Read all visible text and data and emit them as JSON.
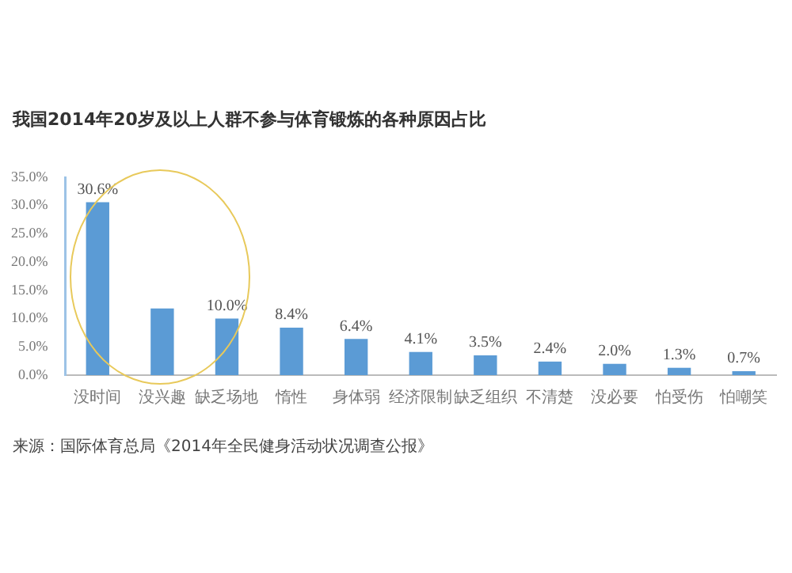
{
  "chart_data": {
    "type": "bar",
    "title": "我国2014年20岁及以上人群不参与体育锻炼的各种原因占比",
    "categories": [
      "没时间",
      "没兴趣",
      "缺乏场地",
      "惰性",
      "身体弱",
      "经济限制",
      "缺乏组织",
      "不清楚",
      "没必要",
      "怕受伤",
      "怕嘲笑"
    ],
    "values": [
      30.6,
      11.8,
      10.0,
      8.4,
      6.4,
      4.1,
      3.5,
      2.4,
      2.0,
      1.3,
      0.7
    ],
    "value_labels": [
      "30.6%",
      null,
      "10.0%",
      "8.4%",
      "6.4%",
      "4.1%",
      "3.5%",
      "2.4%",
      "2.0%",
      "1.3%",
      "0.7%"
    ],
    "color": "#5b9bd5",
    "ylim": [
      0,
      35
    ],
    "yticks": [
      {
        "value": 0,
        "label": "0.0%"
      },
      {
        "value": 5,
        "label": "5.0%"
      },
      {
        "value": 10,
        "label": "10.0%"
      },
      {
        "value": 15,
        "label": "15.0%"
      },
      {
        "value": 20,
        "label": "20.0%"
      },
      {
        "value": 25,
        "label": "25.0%"
      },
      {
        "value": 30,
        "label": "30.0%"
      },
      {
        "value": 35,
        "label": "35.0%"
      }
    ],
    "grid": false,
    "legend": false,
    "annotations": [
      "来源：国际体育总局《2014年全民健身活动状况调查公报》"
    ]
  }
}
